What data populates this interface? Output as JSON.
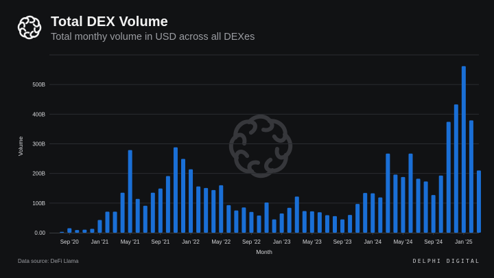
{
  "header": {
    "title": "Total DEX Volume",
    "subtitle": "Total monthy volume in USD across all DEXes",
    "logo_icon": "delphi-knot-icon"
  },
  "footer": {
    "source": "Data source: DeFi Llama",
    "brand": "DELPHI DIGITAL"
  },
  "colors": {
    "background": "#111214",
    "bar": "#1a6fd6",
    "grid": "#2a2c30",
    "axis_text": "#d6d7da",
    "watermark": "#3a3b3f"
  },
  "chart_data": {
    "type": "bar",
    "title": "Total DEX Volume",
    "subtitle": "Total monthy volume in USD across all DEXes",
    "xlabel": "Month",
    "ylabel": "Volume",
    "unit": "USD (billions)",
    "ylim": [
      0,
      600
    ],
    "yticks": [
      0,
      100,
      200,
      300,
      400,
      500,
      600
    ],
    "ytick_labels": [
      "0.00",
      "100B",
      "200B",
      "300B",
      "400B",
      "500B",
      ""
    ],
    "grid": true,
    "legend": "none",
    "categories": [
      "Aug '20",
      "Sep '20",
      "Oct '20",
      "Nov '20",
      "Dec '20",
      "Jan '21",
      "Feb '21",
      "Mar '21",
      "Apr '21",
      "May '21",
      "Jun '21",
      "Jul '21",
      "Aug '21",
      "Sep '21",
      "Oct '21",
      "Nov '21",
      "Dec '21",
      "Jan '22",
      "Feb '22",
      "Mar '22",
      "Apr '22",
      "May '22",
      "Jun '22",
      "Jul '22",
      "Aug '22",
      "Sep '22",
      "Oct '22",
      "Nov '22",
      "Dec '22",
      "Jan '23",
      "Feb '23",
      "Mar '23",
      "Apr '23",
      "May '23",
      "Jun '23",
      "Jul '23",
      "Aug '23",
      "Sep '23",
      "Oct '23",
      "Nov '23",
      "Dec '23",
      "Jan '24",
      "Feb '24",
      "Mar '24",
      "Apr '24",
      "May '24",
      "Jun '24",
      "Jul '24",
      "Aug '24",
      "Sep '24",
      "Oct '24",
      "Nov '24",
      "Dec '24",
      "Jan '25",
      "Feb '25",
      "Mar '25"
    ],
    "values": [
      3,
      15,
      9,
      10,
      13,
      43,
      71,
      71,
      135,
      279,
      114,
      91,
      135,
      149,
      191,
      288,
      249,
      214,
      156,
      151,
      144,
      160,
      93,
      75,
      85,
      70,
      58,
      102,
      45,
      65,
      84,
      122,
      73,
      72,
      69,
      59,
      56,
      45,
      60,
      97,
      134,
      133,
      119,
      267,
      196,
      188,
      267,
      182,
      173,
      127,
      193,
      374,
      433,
      562,
      379,
      210
    ],
    "xtick_labels": [
      "Sep '20",
      "Jan '21",
      "May '21",
      "Sep '21",
      "Jan '22",
      "May '22",
      "Sep '22",
      "Jan '23",
      "May '23",
      "Sep '23",
      "Jan '24",
      "May '24",
      "Sep '24",
      "Jan '25"
    ]
  }
}
